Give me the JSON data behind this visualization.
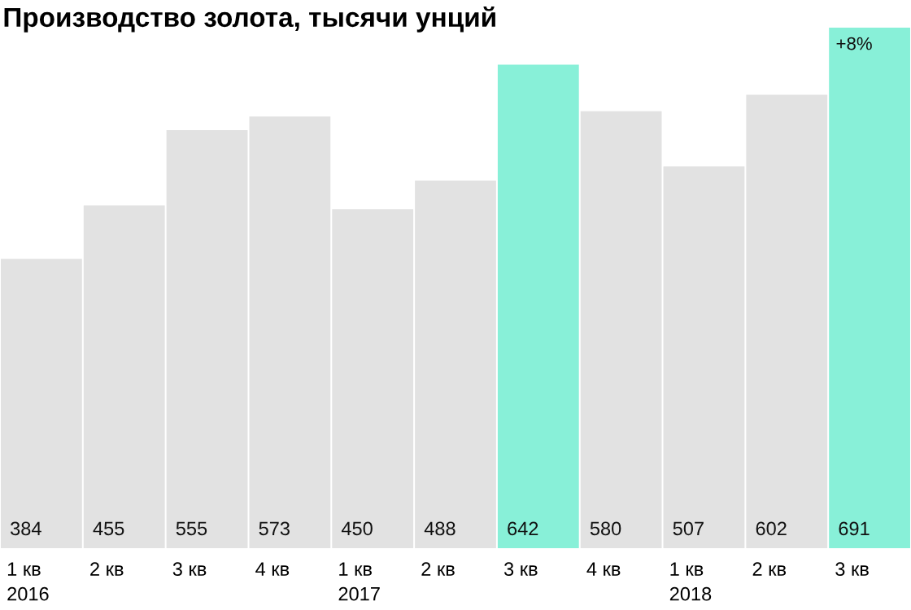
{
  "chart_data": {
    "type": "bar",
    "title": "Производство золота, тысячи унций",
    "categories": [
      "1 кв\n2016",
      "2 кв",
      "3 кв",
      "4 кв",
      "1 кв\n2017",
      "2 кв",
      "3 кв",
      "4 кв",
      "1 кв\n2018",
      "2 кв",
      "3 кв"
    ],
    "values": [
      384,
      455,
      555,
      573,
      450,
      488,
      642,
      580,
      507,
      602,
      691
    ],
    "colors": [
      "#e2e2e2",
      "#e2e2e2",
      "#e2e2e2",
      "#e2e2e2",
      "#e2e2e2",
      "#e2e2e2",
      "#88f0d8",
      "#e2e2e2",
      "#e2e2e2",
      "#e2e2e2",
      "#88f0d8"
    ],
    "data_labels": true,
    "annotations": [
      "+8%"
    ],
    "grid": false,
    "legend": false
  }
}
